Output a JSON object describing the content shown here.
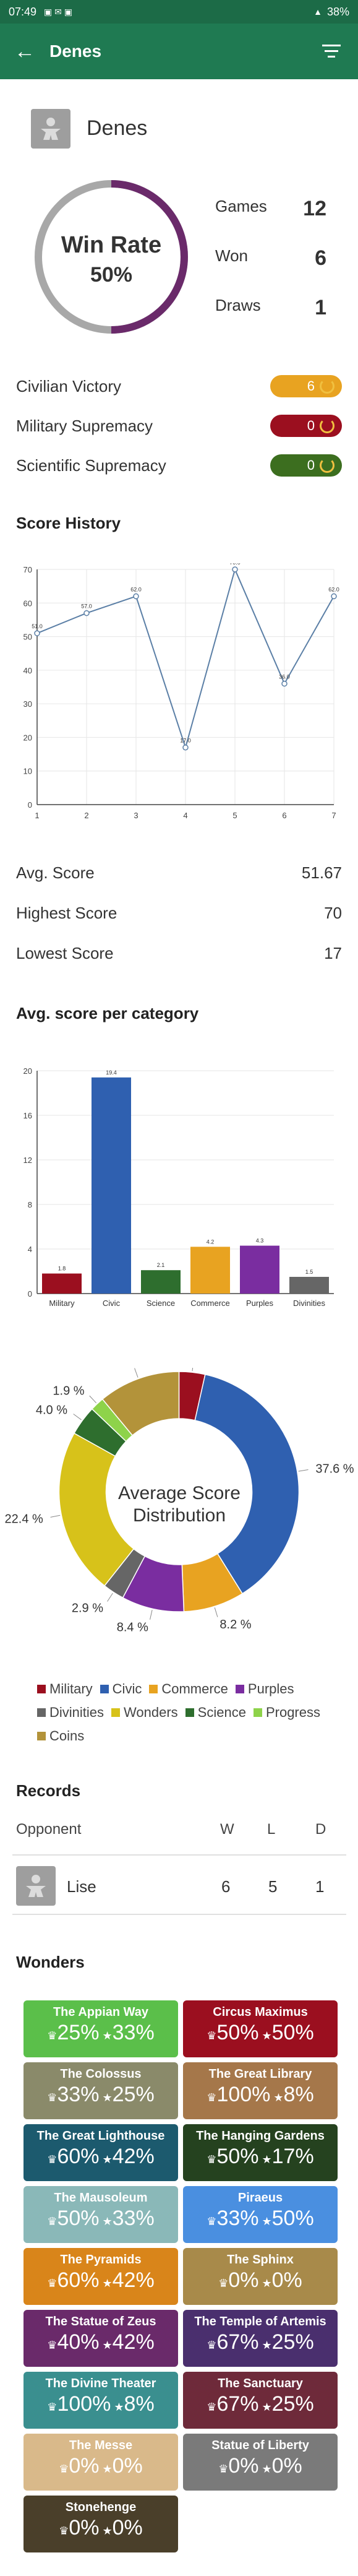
{
  "status_bar": {
    "time": "07:49",
    "battery": "38%"
  },
  "app_bar": {
    "title": "Denes"
  },
  "player": {
    "name": "Denes"
  },
  "win_rate": {
    "label": "Win Rate",
    "value": "50%",
    "fraction": 0.5
  },
  "summary": [
    {
      "label": "Games",
      "value": "12"
    },
    {
      "label": "Won",
      "value": "6"
    },
    {
      "label": "Draws",
      "value": "1"
    }
  ],
  "victories": [
    {
      "label": "Civilian Victory",
      "value": "6",
      "color": "#e8a321"
    },
    {
      "label": "Military Supremacy",
      "value": "0",
      "color": "#9b0f1f"
    },
    {
      "label": "Scientific Supremacy",
      "value": "0",
      "color": "#3c6e1f"
    }
  ],
  "score_history_title": "Score History",
  "score_stats": [
    {
      "label": "Avg. Score",
      "value": "51.67"
    },
    {
      "label": "Highest Score",
      "value": "70"
    },
    {
      "label": "Lowest Score",
      "value": "17"
    }
  ],
  "category_title": "Avg. score per category",
  "chart_data": [
    {
      "type": "line",
      "x": [
        1,
        2,
        3,
        4,
        5,
        6,
        7
      ],
      "values": [
        51,
        57,
        62,
        17,
        70,
        36,
        62
      ],
      "value_labels": [
        "51.0",
        "57.0",
        "62.0",
        "17.0",
        "70.0",
        "36.0",
        "62.0"
      ],
      "xlim": [
        1,
        7
      ],
      "ylim": [
        0,
        70
      ],
      "yticks": [
        0,
        10,
        20,
        30,
        40,
        50,
        60,
        70
      ],
      "grid": true,
      "color": "#5b7fa6"
    },
    {
      "type": "bar",
      "categories": [
        "Military",
        "Civic",
        "Science",
        "Commerce",
        "Purples",
        "Divinities"
      ],
      "values": [
        1.8,
        19.4,
        2.1,
        4.2,
        4.3,
        1.5
      ],
      "colors": [
        "#9b0f1f",
        "#2f60b0",
        "#2e6e2e",
        "#e8a321",
        "#7a2da0",
        "#666666"
      ],
      "ylim": [
        0,
        20
      ],
      "yticks": [
        0,
        4,
        8,
        12,
        16,
        20
      ],
      "grid": true
    },
    {
      "type": "pie",
      "title": "Average Score Distribution",
      "slices": [
        {
          "label": "Military",
          "value": 3.5,
          "color": "#9b0f1f"
        },
        {
          "label": "Civic",
          "value": 37.6,
          "color": "#2f60b0"
        },
        {
          "label": "Commerce",
          "value": 8.2,
          "color": "#e8a321"
        },
        {
          "label": "Purples",
          "value": 8.4,
          "color": "#7a2da0"
        },
        {
          "label": "Divinities",
          "value": 2.9,
          "color": "#666666"
        },
        {
          "label": "Wonders",
          "value": 22.4,
          "color": "#d7c21a"
        },
        {
          "label": "Science",
          "value": 4.0,
          "color": "#2e6e2e"
        },
        {
          "label": "Progress",
          "value": 1.9,
          "color": "#8ed34a"
        },
        {
          "label": "Coins",
          "value": 11.0,
          "color": "#b3933a"
        }
      ],
      "slice_labels": [
        "3.5 %",
        "37.6 %",
        "8.2 %",
        "8.4 %",
        "2.9 %",
        "22.4 %",
        "4.0 %",
        "1.9 %",
        "11.0 %"
      ]
    }
  ],
  "records": {
    "title": "Records",
    "headers": {
      "opponent": "Opponent",
      "w": "W",
      "l": "L",
      "d": "D"
    },
    "rows": [
      {
        "name": "Lise",
        "w": "6",
        "l": "5",
        "d": "1"
      }
    ]
  },
  "wonders_title": "Wonders",
  "wonders": [
    {
      "name": "The Appian Way",
      "win": "25%",
      "pick": "33%",
      "color": "#5bbf4a"
    },
    {
      "name": "Circus Maximus",
      "win": "50%",
      "pick": "50%",
      "color": "#9b0f1f"
    },
    {
      "name": "The Colossus",
      "win": "33%",
      "pick": "25%",
      "color": "#8a8a6a"
    },
    {
      "name": "The Great Library",
      "win": "100%",
      "pick": "8%",
      "color": "#a5774a"
    },
    {
      "name": "The Great Lighthouse",
      "win": "60%",
      "pick": "42%",
      "color": "#1c5a6e"
    },
    {
      "name": "The Hanging Gardens",
      "win": "50%",
      "pick": "17%",
      "color": "#25421f"
    },
    {
      "name": "The Mausoleum",
      "win": "50%",
      "pick": "33%",
      "color": "#8ab8b8"
    },
    {
      "name": "Piraeus",
      "win": "33%",
      "pick": "50%",
      "color": "#4a8fe0"
    },
    {
      "name": "The Pyramids",
      "win": "60%",
      "pick": "42%",
      "color": "#d9851a"
    },
    {
      "name": "The Sphinx",
      "win": "0%",
      "pick": "0%",
      "color": "#a88a4a"
    },
    {
      "name": "The Statue of Zeus",
      "win": "40%",
      "pick": "42%",
      "color": "#6a2a6a"
    },
    {
      "name": "The Temple of Artemis",
      "win": "67%",
      "pick": "25%",
      "color": "#4a2f6e"
    },
    {
      "name": "The Divine Theater",
      "win": "100%",
      "pick": "8%",
      "color": "#3a8f8f"
    },
    {
      "name": "The Sanctuary",
      "win": "67%",
      "pick": "25%",
      "color": "#6e2a3a"
    },
    {
      "name": "The Messe",
      "win": "0%",
      "pick": "0%",
      "color": "#d9b98a"
    },
    {
      "name": "Statue of Liberty",
      "win": "0%",
      "pick": "0%",
      "color": "#7a7a7a"
    },
    {
      "name": "Stonehenge",
      "win": "0%",
      "pick": "0%",
      "color": "#4a3f2a"
    }
  ],
  "icons": {
    "back": "arrow-left-icon",
    "filter": "filter-icon",
    "avatar": "meeple-icon",
    "laurel": "laurel-icon",
    "wonder_win": "crown-icon",
    "wonder_pick": "star-icon"
  }
}
